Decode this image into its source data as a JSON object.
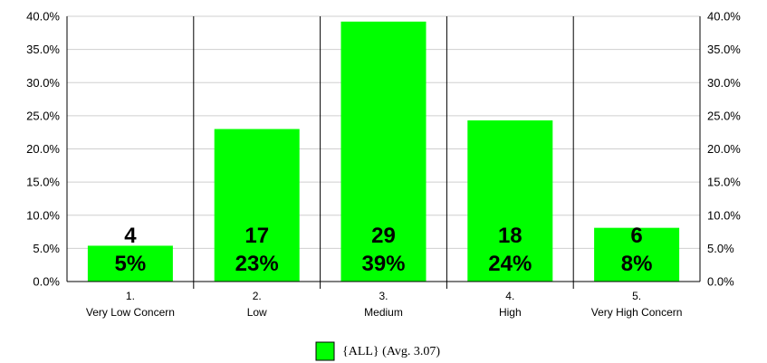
{
  "chart_data": {
    "type": "bar",
    "categories": [
      {
        "num": "1.",
        "label": "Very Low Concern"
      },
      {
        "num": "2.",
        "label": "Low"
      },
      {
        "num": "3.",
        "label": "Medium"
      },
      {
        "num": "4.",
        "label": "High"
      },
      {
        "num": "5.",
        "label": "Very High Concern"
      }
    ],
    "series": [
      {
        "name": "{ALL} (Avg. 3.07)",
        "color": "#00FF00",
        "values": [
          5.4,
          23.0,
          39.2,
          24.3,
          8.1
        ],
        "counts": [
          "4",
          "17",
          "29",
          "18",
          "6"
        ],
        "percent_labels": [
          "5%",
          "23%",
          "39%",
          "24%",
          "8%"
        ]
      }
    ],
    "ylim": [
      0,
      40
    ],
    "yticks": [
      "0.0%",
      "5.0%",
      "10.0%",
      "15.0%",
      "20.0%",
      "25.0%",
      "30.0%",
      "35.0%",
      "40.0%"
    ],
    "grid": true,
    "legend_position": "bottom-center"
  }
}
